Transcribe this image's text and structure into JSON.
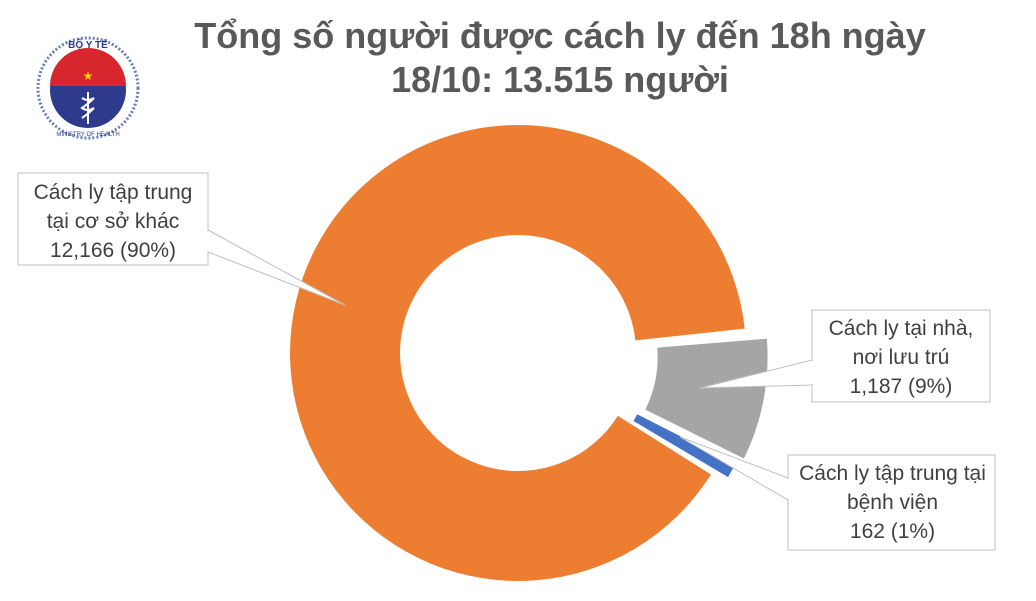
{
  "logo": {
    "text_top": "BỘ Y TẾ",
    "text_bottom": "MINISTRY OF HEALTH"
  },
  "chart_data": {
    "type": "pie",
    "variant": "donut-exploded",
    "title_line1": "Tổng số người được cách ly đến 18h ngày",
    "title_line2": "18/10: 13.515 người",
    "slices": [
      {
        "name": "Cách ly tập trung tại cơ sở khác",
        "label_line1": "Cách ly tập trung",
        "label_line2": "tại cơ sở khác",
        "label_line3": "12,166 (90%)",
        "value": 12166,
        "percent": 90,
        "color": "#ED7D31"
      },
      {
        "name": "Cách ly tại nhà, nơi lưu trú",
        "label_line1": "Cách ly tại nhà,",
        "label_line2": "nơi lưu trú",
        "label_line3": "1,187 (9%)",
        "value": 1187,
        "percent": 9,
        "color": "#A5A5A5"
      },
      {
        "name": "Cách ly tập trung tại bệnh viện",
        "label_line1": "Cách ly tập trung tại",
        "label_line2": "bệnh viện",
        "label_line3": "162 (1%)",
        "value": 162,
        "percent": 1,
        "color": "#4472C4"
      }
    ]
  }
}
